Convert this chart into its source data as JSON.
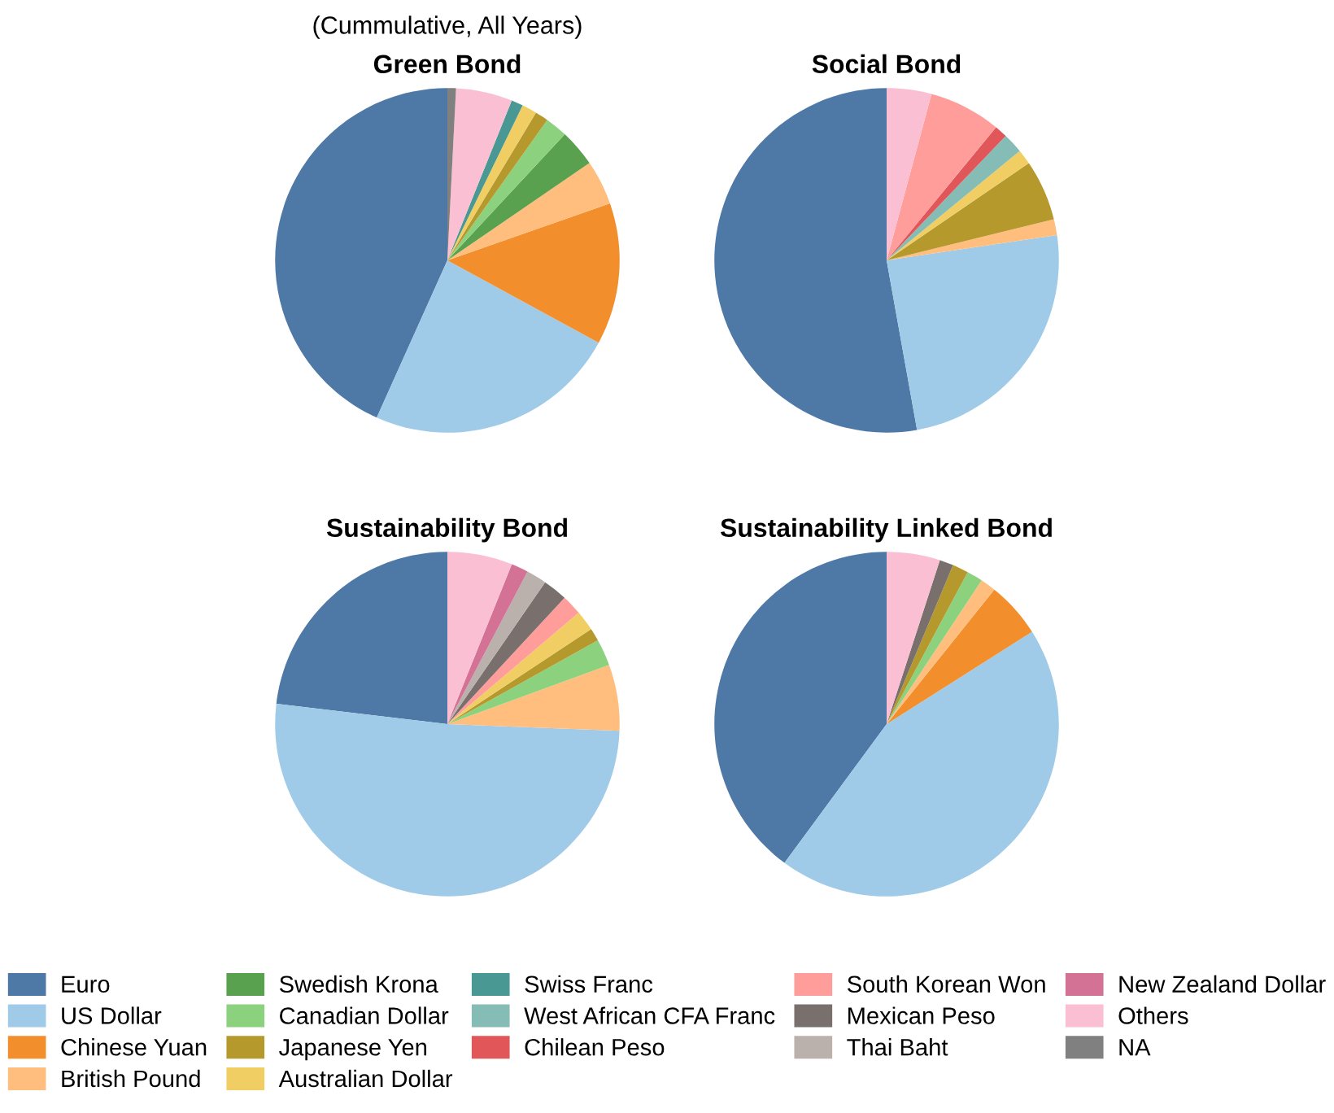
{
  "chart_data": [
    {
      "type": "pie",
      "title": "Green Bond",
      "legend": "bottom",
      "annotations": [
        "(Cummulative, All Years)"
      ],
      "categories": [
        "Euro",
        "US Dollar",
        "Chinese Yuan",
        "British Pound",
        "Swedish Krona",
        "Canadian Dollar",
        "Japanese Yen",
        "Australian Dollar",
        "Swiss Franc",
        "West African CFA Franc",
        "Chilean Peso",
        "South Korean Won",
        "Mexican Peso",
        "Thai Baht",
        "New Zealand Dollar",
        "Others",
        "NA"
      ],
      "values": [
        43.3,
        23.8,
        13.3,
        4.2,
        3.5,
        2.1,
        1.25,
        1.4,
        1.1,
        0,
        0,
        0,
        0,
        0,
        0,
        5.3,
        0.8
      ],
      "colors": [
        "#4e79a7",
        "#a0cbe8",
        "#f28e2b",
        "#ffbe7d",
        "#59a14f",
        "#8cd17d",
        "#b6992d",
        "#f1ce63",
        "#499894",
        "#86bcb6",
        "#e15759",
        "#ff9d9a",
        "#79706e",
        "#bab0ac",
        "#d37295",
        "#fabfd2",
        "#808080"
      ]
    },
    {
      "type": "pie",
      "title": "Social Bond",
      "categories": [
        null,
        null,
        null,
        null,
        null,
        null,
        null,
        null,
        null,
        null,
        null,
        null,
        null,
        null,
        null,
        null,
        null
      ],
      "values": [
        52.8,
        24.5,
        0,
        1.5,
        0,
        0,
        5.7,
        1.4,
        0,
        1.9,
        1.2,
        6.75,
        0,
        0,
        0,
        4.2,
        0
      ],
      "colors": [
        "#4e79a7",
        "#a0cbe8",
        "#f28e2b",
        "#ffbe7d",
        "#59a14f",
        "#8cd17d",
        "#b6992d",
        "#f1ce63",
        "#499894",
        "#86bcb6",
        "#e15759",
        "#ff9d9a",
        "#79706e",
        "#bab0ac",
        "#d37295",
        "#fabfd2",
        "#808080"
      ]
    },
    {
      "type": "pie",
      "title": "Sustainability Bond",
      "categories": [
        null,
        null,
        null,
        null,
        null,
        null,
        null,
        null,
        null,
        null,
        null,
        null,
        null,
        null,
        null,
        null,
        null
      ],
      "values": [
        23.1,
        51.25,
        0,
        6.2,
        0,
        2.5,
        1.2,
        1.9,
        0,
        0,
        0,
        1.9,
        2.3,
        1.9,
        1.6,
        6.1,
        0
      ],
      "colors": [
        "#4e79a7",
        "#a0cbe8",
        "#f28e2b",
        "#ffbe7d",
        "#59a14f",
        "#8cd17d",
        "#b6992d",
        "#f1ce63",
        "#499894",
        "#86bcb6",
        "#e15759",
        "#ff9d9a",
        "#79706e",
        "#bab0ac",
        "#d37295",
        "#fabfd2",
        "#808080"
      ]
    },
    {
      "type": "pie",
      "title": "Sustainability Linked Bond",
      "categories": [
        null,
        null,
        null,
        null,
        null,
        null,
        null,
        null,
        null,
        null,
        null,
        null,
        null,
        null,
        null,
        null,
        null
      ],
      "values": [
        39.9,
        44.1,
        5.25,
        1.45,
        0,
        1.5,
        1.5,
        0,
        0,
        0,
        0,
        0,
        1.3,
        0,
        0,
        5.0,
        0
      ],
      "colors": [
        "#4e79a7",
        "#a0cbe8",
        "#f28e2b",
        "#ffbe7d",
        "#59a14f",
        "#8cd17d",
        "#b6992d",
        "#f1ce63",
        "#499894",
        "#86bcb6",
        "#e15759",
        "#ff9d9a",
        "#79706e",
        "#bab0ac",
        "#d37295",
        "#fabfd2",
        "#808080"
      ]
    }
  ]
}
